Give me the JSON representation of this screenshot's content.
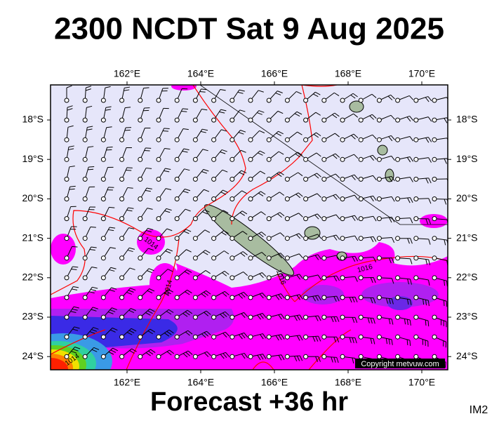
{
  "header": {
    "title": "2300 NCDT Sat 9 Aug 2025"
  },
  "footer": {
    "forecast": "Forecast +36 hr",
    "image_id": "IM2"
  },
  "map": {
    "lon_labels": [
      "162°E",
      "164°E",
      "166°E",
      "168°E",
      "170°E"
    ],
    "lat_labels": [
      "18°S",
      "19°S",
      "20°S",
      "21°S",
      "22°S",
      "23°S",
      "24°S"
    ],
    "isobar_labels": [
      "1014",
      "1014",
      "1016",
      "1016",
      "1014"
    ],
    "copyright": "Copyright metvuw.com"
  }
}
